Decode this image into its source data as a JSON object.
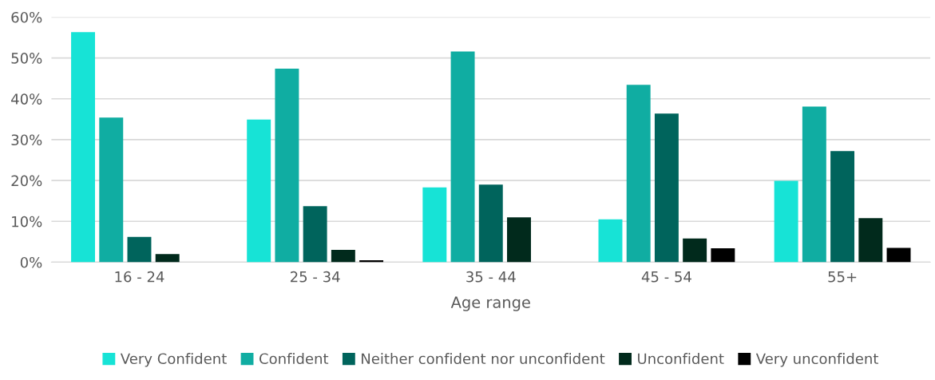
{
  "chart_data": {
    "type": "bar",
    "xlabel": "Age range",
    "categories": [
      "16 - 24",
      "25 - 34",
      "35 - 44",
      "45 - 54",
      "55+"
    ],
    "series": [
      {
        "name": "Very Confident",
        "color": "#17e3d6",
        "values": [
          56.3,
          34.9,
          18.3,
          10.5,
          19.9
        ]
      },
      {
        "name": "Confident",
        "color": "#10ada2",
        "values": [
          35.4,
          47.4,
          51.6,
          43.4,
          38.1
        ]
      },
      {
        "name": "Neither confident nor unconfident",
        "color": "#00645c",
        "values": [
          6.2,
          13.7,
          19.0,
          36.4,
          27.2
        ]
      },
      {
        "name": "Unconfident",
        "color": "#012a1c",
        "values": [
          2.0,
          3.0,
          11.0,
          5.8,
          10.8
        ]
      },
      {
        "name": "Very unconfident",
        "color": "#000000",
        "values": [
          0,
          0.5,
          0,
          3.4,
          3.5
        ]
      }
    ],
    "ylim": [
      0,
      60
    ],
    "yticks": [
      {
        "value": 0,
        "label": "0%"
      },
      {
        "value": 10,
        "label": "10%"
      },
      {
        "value": 20,
        "label": "20%"
      },
      {
        "value": 30,
        "label": "30%"
      },
      {
        "value": 40,
        "label": "40%"
      },
      {
        "value": 50,
        "label": "50%"
      },
      {
        "value": 60,
        "label": "60%"
      }
    ],
    "grid": "y",
    "legend": "bottom"
  }
}
